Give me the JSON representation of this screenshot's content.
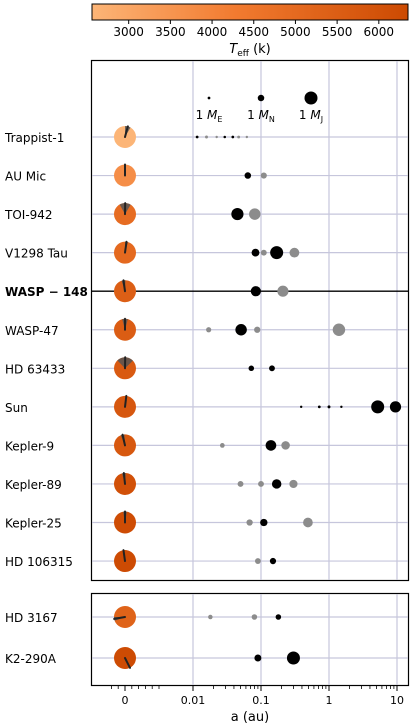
{
  "chart_data": {
    "type": "scatter",
    "colorbar": {
      "label_main": "T",
      "label_sub": "eff",
      "label_unit": "(k)",
      "ticks": [
        3000,
        3500,
        4000,
        4500,
        5000,
        5500,
        6000
      ],
      "range": [
        2560,
        6350
      ],
      "colors": {
        "low": "#fcb577",
        "mid": "#f27b30",
        "high": "#cc4a02"
      }
    },
    "legend": [
      {
        "label": "1 M",
        "sub": "E",
        "mass_me": 1
      },
      {
        "label": "1 M",
        "sub": "N",
        "mass_me": 17
      },
      {
        "label": "1 M",
        "sub": "J",
        "mass_me": 318
      }
    ],
    "xlabel": "a (au)",
    "xaxis": {
      "scale": "symlog",
      "range": [
        -0.003,
        13
      ],
      "ticks": [
        {
          "value": 0,
          "label": "0"
        },
        {
          "value": 0.01,
          "label": "0.01"
        },
        {
          "value": 0.1,
          "label": "0.1"
        },
        {
          "value": 1,
          "label": "1"
        },
        {
          "value": 10,
          "label": "10"
        }
      ],
      "gridlines": [
        0.01,
        0.1,
        1,
        10
      ]
    },
    "systems": [
      {
        "name": "Trappist-1",
        "bold": false,
        "teff": 2560,
        "obliquity_deg": 15,
        "spread_deg": 30,
        "planets": [
          {
            "a": 0.0115,
            "mass": 1.0,
            "measured": true
          },
          {
            "a": 0.0158,
            "mass": 1.2,
            "measured": false
          },
          {
            "a": 0.0223,
            "mass": 0.4,
            "measured": false
          },
          {
            "a": 0.0293,
            "mass": 0.7,
            "measured": true
          },
          {
            "a": 0.0385,
            "mass": 0.9,
            "measured": true
          },
          {
            "a": 0.0469,
            "mass": 1.1,
            "measured": false
          },
          {
            "a": 0.0619,
            "mass": 0.3,
            "measured": false
          }
        ]
      },
      {
        "name": "AU Mic",
        "bold": false,
        "teff": 3700,
        "obliquity_deg": 0,
        "spread_deg": 0,
        "planets": [
          {
            "a": 0.064,
            "mass": 17,
            "measured": true
          },
          {
            "a": 0.11,
            "mass": 14,
            "measured": false
          }
        ]
      },
      {
        "name": "TOI-942",
        "bold": false,
        "teff": 4900,
        "obliquity_deg": 1,
        "spread_deg": 60,
        "planets": [
          {
            "a": 0.045,
            "mass": 120,
            "measured": true
          },
          {
            "a": 0.081,
            "mass": 100,
            "measured": false
          }
        ]
      },
      {
        "name": "V1298 Tau",
        "bold": false,
        "teff": 5050,
        "obliquity_deg": 8,
        "spread_deg": 15,
        "planets": [
          {
            "a": 0.083,
            "mass": 30,
            "measured": true
          },
          {
            "a": 0.11,
            "mass": 12,
            "measured": false
          },
          {
            "a": 0.17,
            "mass": 330,
            "measured": true
          },
          {
            "a": 0.31,
            "mass": 60,
            "measured": false
          }
        ]
      },
      {
        "name": "WASP − 148",
        "bold": true,
        "teff": 5450,
        "obliquity_deg": -8,
        "spread_deg": 20,
        "planets": [
          {
            "a": 0.084,
            "mass": 70,
            "measured": true
          },
          {
            "a": 0.21,
            "mass": 90,
            "measured": false
          }
        ]
      },
      {
        "name": "WASP-47",
        "bold": false,
        "teff": 5550,
        "obliquity_deg": 0,
        "spread_deg": 30,
        "planets": [
          {
            "a": 0.017,
            "mass": 8,
            "measured": false
          },
          {
            "a": 0.051,
            "mass": 100,
            "measured": true
          },
          {
            "a": 0.088,
            "mass": 15,
            "measured": false
          },
          {
            "a": 1.4,
            "mass": 130,
            "measured": false
          }
        ]
      },
      {
        "name": "HD 63433",
        "bold": false,
        "teff": 5650,
        "obliquity_deg": 1,
        "spread_deg": 90,
        "planets": [
          {
            "a": 0.072,
            "mass": 10,
            "measured": true
          },
          {
            "a": 0.145,
            "mass": 12,
            "measured": true
          }
        ]
      },
      {
        "name": "Sun",
        "bold": false,
        "teff": 5780,
        "obliquity_deg": 7,
        "spread_deg": 0,
        "planets": [
          {
            "a": 0.39,
            "mass": 0.5,
            "measured": true
          },
          {
            "a": 0.72,
            "mass": 1.0,
            "measured": true
          },
          {
            "a": 1.0,
            "mass": 1.2,
            "measured": true
          },
          {
            "a": 1.52,
            "mass": 0.6,
            "measured": true
          },
          {
            "a": 5.2,
            "mass": 318,
            "measured": true
          },
          {
            "a": 9.5,
            "mass": 95,
            "measured": true
          }
        ]
      },
      {
        "name": "Kepler-9",
        "bold": false,
        "teff": 5770,
        "obliquity_deg": -13,
        "spread_deg": 20,
        "planets": [
          {
            "a": 0.027,
            "mass": 6,
            "measured": false
          },
          {
            "a": 0.14,
            "mass": 80,
            "measured": true
          },
          {
            "a": 0.23,
            "mass": 40,
            "measured": false
          }
        ]
      },
      {
        "name": "Kepler-89",
        "bold": false,
        "teff": 6100,
        "obliquity_deg": -6,
        "spread_deg": 20,
        "planets": [
          {
            "a": 0.05,
            "mass": 12,
            "measured": false
          },
          {
            "a": 0.1,
            "mass": 12,
            "measured": false
          },
          {
            "a": 0.17,
            "mass": 55,
            "measured": true
          },
          {
            "a": 0.3,
            "mass": 35,
            "measured": false
          }
        ]
      },
      {
        "name": "Kepler-25",
        "bold": false,
        "teff": 6250,
        "obliquity_deg": 0,
        "spread_deg": 20,
        "planets": [
          {
            "a": 0.068,
            "mass": 15,
            "measured": false
          },
          {
            "a": 0.11,
            "mass": 25,
            "measured": true
          },
          {
            "a": 0.49,
            "mass": 60,
            "measured": false
          }
        ]
      },
      {
        "name": "HD 106315",
        "bold": false,
        "teff": 6300,
        "obliquity_deg": -8,
        "spread_deg": 0,
        "planets": [
          {
            "a": 0.09,
            "mass": 12,
            "measured": false
          },
          {
            "a": 0.15,
            "mass": 15,
            "measured": true
          }
        ]
      }
    ],
    "systems_lower": [
      {
        "name": "HD 3167",
        "bold": false,
        "teff": 5300,
        "obliquity_deg": -100,
        "spread_deg": 20,
        "planets": [
          {
            "a": 0.018,
            "mass": 5,
            "measured": false
          },
          {
            "a": 0.08,
            "mass": 10,
            "measured": false
          },
          {
            "a": 0.18,
            "mass": 10,
            "measured": true
          }
        ]
      },
      {
        "name": "K2-290A",
        "bold": false,
        "teff": 6300,
        "obliquity_deg": 153,
        "spread_deg": 10,
        "planets": [
          {
            "a": 0.09,
            "mass": 21,
            "measured": true
          },
          {
            "a": 0.3,
            "mass": 246,
            "measured": true
          }
        ]
      }
    ]
  }
}
